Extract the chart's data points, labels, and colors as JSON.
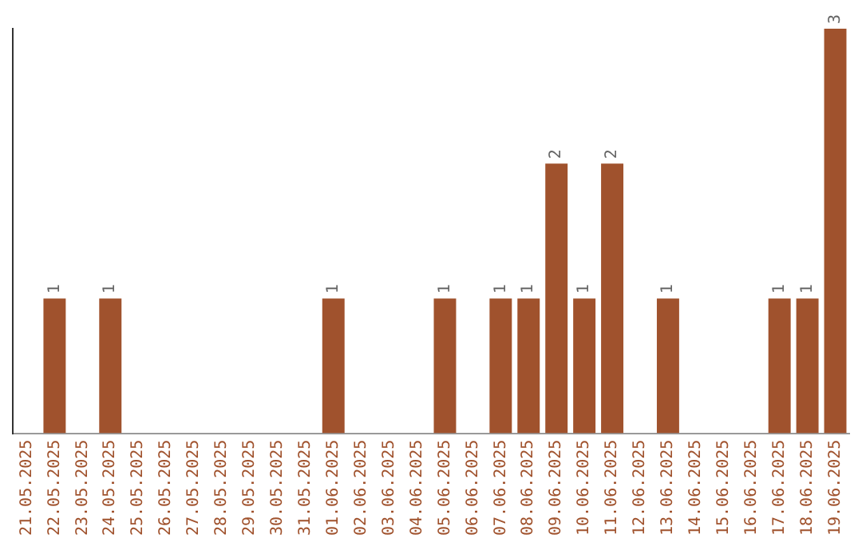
{
  "chart_data": {
    "type": "bar",
    "categories": [
      "21.05.2025",
      "22.05.2025",
      "23.05.2025",
      "24.05.2025",
      "25.05.2025",
      "26.05.2025",
      "27.05.2025",
      "28.05.2025",
      "29.05.2025",
      "30.05.2025",
      "31.05.2025",
      "01.06.2025",
      "02.06.2025",
      "03.06.2025",
      "04.06.2025",
      "05.06.2025",
      "06.06.2025",
      "07.06.2025",
      "08.06.2025",
      "09.06.2025",
      "10.06.2025",
      "11.06.2025",
      "12.06.2025",
      "13.06.2025",
      "14.06.2025",
      "15.06.2025",
      "16.06.2025",
      "17.06.2025",
      "18.06.2025",
      "19.06.2025"
    ],
    "values": [
      0,
      1,
      0,
      1,
      0,
      0,
      0,
      0,
      0,
      0,
      0,
      1,
      0,
      0,
      0,
      1,
      0,
      1,
      1,
      2,
      1,
      2,
      0,
      1,
      0,
      0,
      0,
      1,
      1,
      3
    ],
    "value_labels": [
      null,
      "1",
      null,
      "1",
      null,
      null,
      null,
      null,
      null,
      null,
      null,
      "1",
      null,
      null,
      null,
      "1",
      null,
      "1",
      "1",
      "2",
      "1",
      "2",
      null,
      "1",
      null,
      null,
      null,
      "1",
      "1",
      "3"
    ],
    "color": "#a0522d",
    "grid": false,
    "legend": false,
    "tick_labels": "x"
  }
}
